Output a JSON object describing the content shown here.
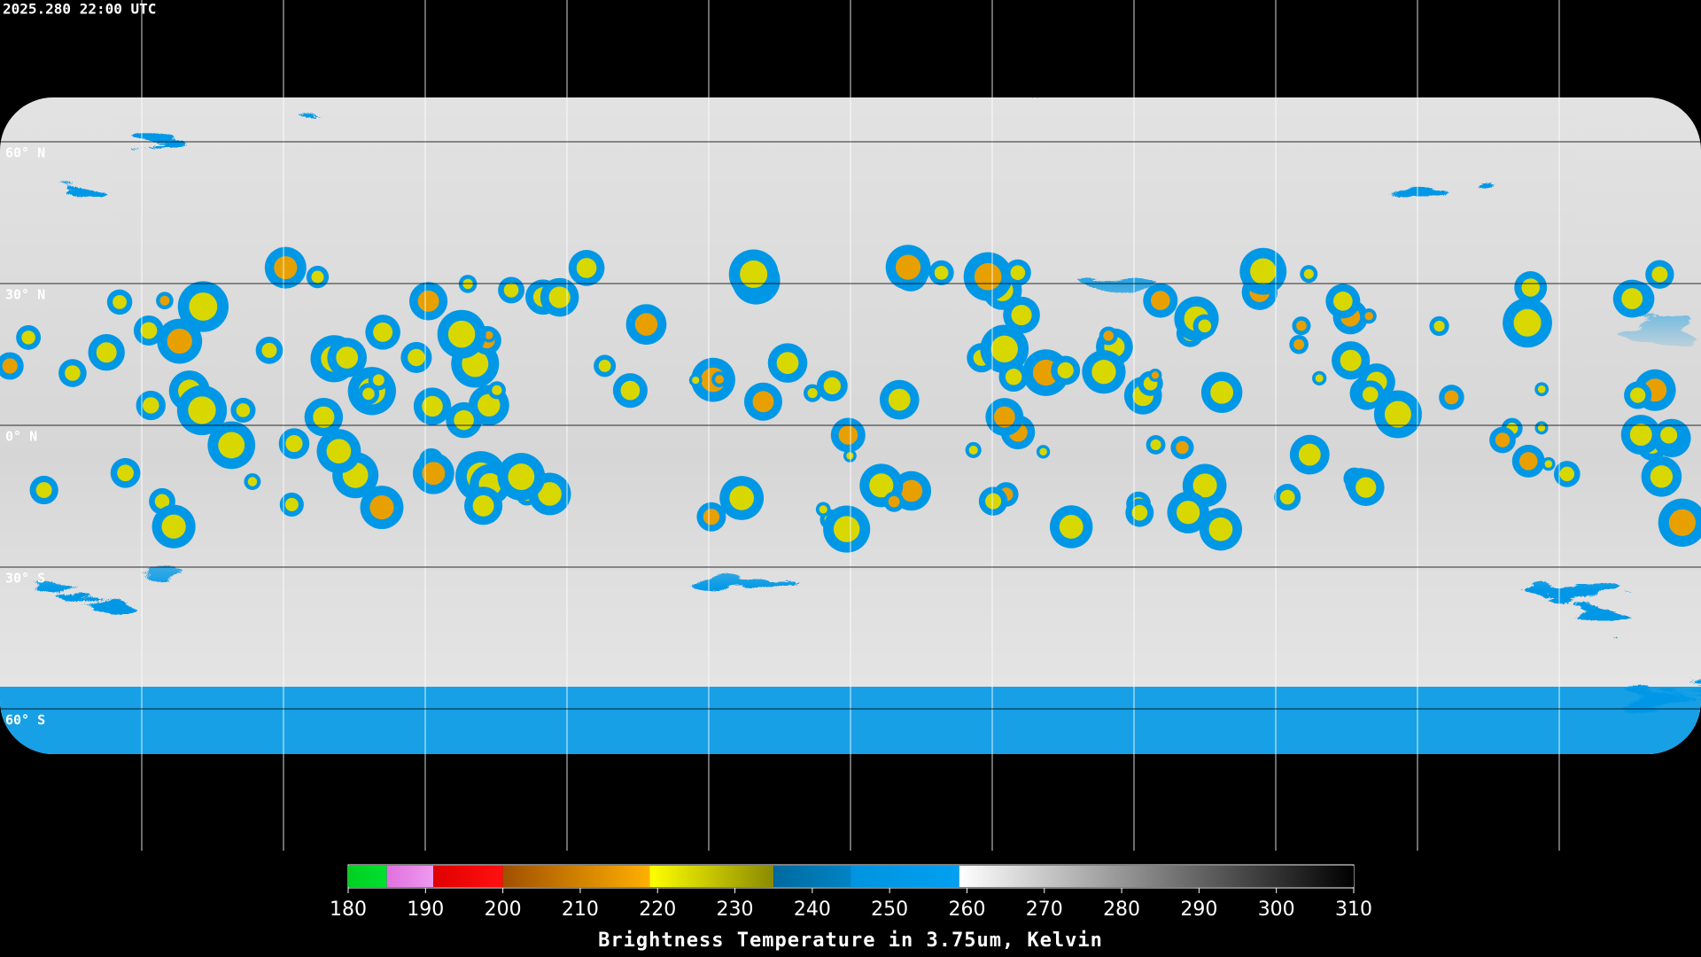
{
  "header": {
    "title": "2025.280 22:00 UTC"
  },
  "map": {
    "latitude_labels": [
      "60° N",
      "30° N",
      "0° N",
      "30° S",
      "60° S"
    ]
  },
  "colorbar": {
    "range": [
      180,
      310
    ],
    "ticks": [
      180,
      190,
      200,
      210,
      220,
      230,
      240,
      250,
      260,
      270,
      280,
      290,
      300,
      310
    ],
    "label": "Brightness Temperature in 3.75um, Kelvin",
    "segments": [
      {
        "from": 180,
        "to": 185,
        "colors": [
          "#00d020",
          "#00e030"
        ]
      },
      {
        "from": 185,
        "to": 191,
        "colors": [
          "#e070e0",
          "#ee9aee"
        ]
      },
      {
        "from": 191,
        "to": 200,
        "colors": [
          "#e00000",
          "#ff1010"
        ]
      },
      {
        "from": 200,
        "to": 219,
        "colors": [
          "#a05000",
          "#ffb000"
        ]
      },
      {
        "from": 219,
        "to": 235,
        "colors": [
          "#ffff00",
          "#8a8a00"
        ]
      },
      {
        "from": 235,
        "to": 245,
        "colors": [
          "#006aa0",
          "#0084c4"
        ]
      },
      {
        "from": 245,
        "to": 259,
        "colors": [
          "#0094e0",
          "#00a0f0"
        ]
      },
      {
        "from": 259,
        "to": 310,
        "colors": [
          "#ffffff",
          "#000000"
        ]
      }
    ]
  }
}
